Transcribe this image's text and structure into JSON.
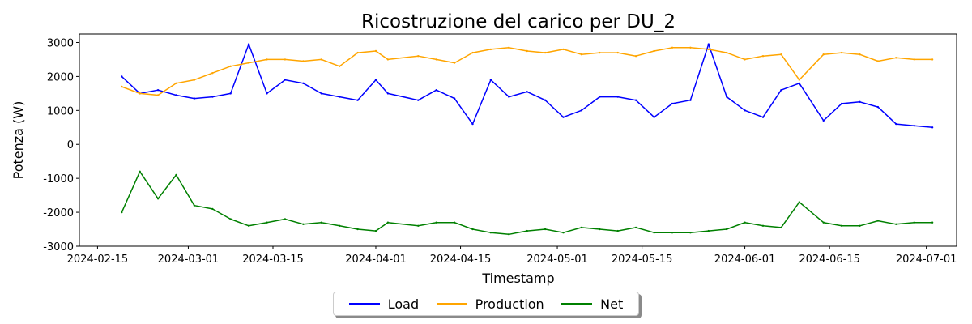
{
  "chart_data": {
    "type": "line",
    "title": "Ricostruzione del carico per DU_2",
    "xlabel": "Timestamp",
    "ylabel": "Potenza (W)",
    "x_ticks": [
      "2024-02-15",
      "2024-03-01",
      "2024-03-15",
      "2024-04-01",
      "2024-04-15",
      "2024-05-01",
      "2024-05-15",
      "2024-06-01",
      "2024-06-15",
      "2024-07-01"
    ],
    "y_ticks": [
      -3000,
      -2000,
      -1000,
      0,
      1000,
      2000,
      3000
    ],
    "xlim": [
      "2024-02-12",
      "2024-07-06"
    ],
    "ylim": [
      -3000,
      3250
    ],
    "grid": false,
    "legend_position": "bottom-center",
    "series": [
      {
        "name": "Load",
        "color": "#0000ff",
        "x": [
          "2024-02-19",
          "2024-02-22",
          "2024-02-25",
          "2024-02-28",
          "2024-03-02",
          "2024-03-05",
          "2024-03-08",
          "2024-03-11",
          "2024-03-14",
          "2024-03-17",
          "2024-03-20",
          "2024-03-23",
          "2024-03-26",
          "2024-03-29",
          "2024-04-01",
          "2024-04-03",
          "2024-04-08",
          "2024-04-11",
          "2024-04-14",
          "2024-04-17",
          "2024-04-20",
          "2024-04-23",
          "2024-04-26",
          "2024-04-29",
          "2024-05-02",
          "2024-05-05",
          "2024-05-08",
          "2024-05-11",
          "2024-05-14",
          "2024-05-17",
          "2024-05-20",
          "2024-05-23",
          "2024-05-26",
          "2024-05-29",
          "2024-06-01",
          "2024-06-04",
          "2024-06-07",
          "2024-06-10",
          "2024-06-14",
          "2024-06-17",
          "2024-06-20",
          "2024-06-23",
          "2024-06-26",
          "2024-06-29",
          "2024-07-02"
        ],
        "values": [
          2000,
          1500,
          1600,
          1450,
          1350,
          1400,
          1500,
          2950,
          1500,
          1900,
          1800,
          1500,
          1400,
          1300,
          1900,
          1500,
          1300,
          1600,
          1350,
          600,
          1900,
          1400,
          1550,
          1300,
          800,
          1000,
          1400,
          1400,
          1300,
          800,
          1200,
          1300,
          2950,
          1400,
          1000,
          800,
          1600,
          1800,
          700,
          1200,
          1250,
          1100,
          600,
          550,
          500
        ]
      },
      {
        "name": "Production",
        "color": "#ffa500",
        "x": [
          "2024-02-19",
          "2024-02-22",
          "2024-02-25",
          "2024-02-28",
          "2024-03-02",
          "2024-03-05",
          "2024-03-08",
          "2024-03-11",
          "2024-03-14",
          "2024-03-17",
          "2024-03-20",
          "2024-03-23",
          "2024-03-26",
          "2024-03-29",
          "2024-04-01",
          "2024-04-03",
          "2024-04-08",
          "2024-04-11",
          "2024-04-14",
          "2024-04-17",
          "2024-04-20",
          "2024-04-23",
          "2024-04-26",
          "2024-04-29",
          "2024-05-02",
          "2024-05-05",
          "2024-05-08",
          "2024-05-11",
          "2024-05-14",
          "2024-05-17",
          "2024-05-20",
          "2024-05-23",
          "2024-05-26",
          "2024-05-29",
          "2024-06-01",
          "2024-06-04",
          "2024-06-07",
          "2024-06-10",
          "2024-06-14",
          "2024-06-17",
          "2024-06-20",
          "2024-06-23",
          "2024-06-26",
          "2024-06-29",
          "2024-07-02"
        ],
        "values": [
          1700,
          1500,
          1450,
          1800,
          1900,
          2100,
          2300,
          2400,
          2500,
          2500,
          2450,
          2500,
          2300,
          2700,
          2750,
          2500,
          2600,
          2500,
          2400,
          2700,
          2800,
          2850,
          2750,
          2700,
          2800,
          2650,
          2700,
          2700,
          2600,
          2750,
          2850,
          2850,
          2800,
          2700,
          2500,
          2600,
          2650,
          1900,
          2650,
          2700,
          2650,
          2450,
          2550,
          2500,
          2500
        ]
      },
      {
        "name": "Net",
        "color": "#008000",
        "x": [
          "2024-02-19",
          "2024-02-22",
          "2024-02-25",
          "2024-02-28",
          "2024-03-02",
          "2024-03-05",
          "2024-03-08",
          "2024-03-11",
          "2024-03-14",
          "2024-03-17",
          "2024-03-20",
          "2024-03-23",
          "2024-03-26",
          "2024-03-29",
          "2024-04-01",
          "2024-04-03",
          "2024-04-08",
          "2024-04-11",
          "2024-04-14",
          "2024-04-17",
          "2024-04-20",
          "2024-04-23",
          "2024-04-26",
          "2024-04-29",
          "2024-05-02",
          "2024-05-05",
          "2024-05-08",
          "2024-05-11",
          "2024-05-14",
          "2024-05-17",
          "2024-05-20",
          "2024-05-23",
          "2024-05-26",
          "2024-05-29",
          "2024-06-01",
          "2024-06-04",
          "2024-06-07",
          "2024-06-10",
          "2024-06-14",
          "2024-06-17",
          "2024-06-20",
          "2024-06-23",
          "2024-06-26",
          "2024-06-29",
          "2024-07-02"
        ],
        "values": [
          -2000,
          -800,
          -1600,
          -900,
          -1800,
          -1900,
          -2200,
          -2400,
          -2300,
          -2200,
          -2350,
          -2300,
          -2400,
          -2500,
          -2550,
          -2300,
          -2400,
          -2300,
          -2300,
          -2500,
          -2600,
          -2650,
          -2550,
          -2500,
          -2600,
          -2450,
          -2500,
          -2550,
          -2450,
          -2600,
          -2600,
          -2600,
          -2550,
          -2500,
          -2300,
          -2400,
          -2450,
          -1700,
          -2300,
          -2400,
          -2400,
          -2250,
          -2350,
          -2300,
          -2300
        ]
      }
    ]
  }
}
